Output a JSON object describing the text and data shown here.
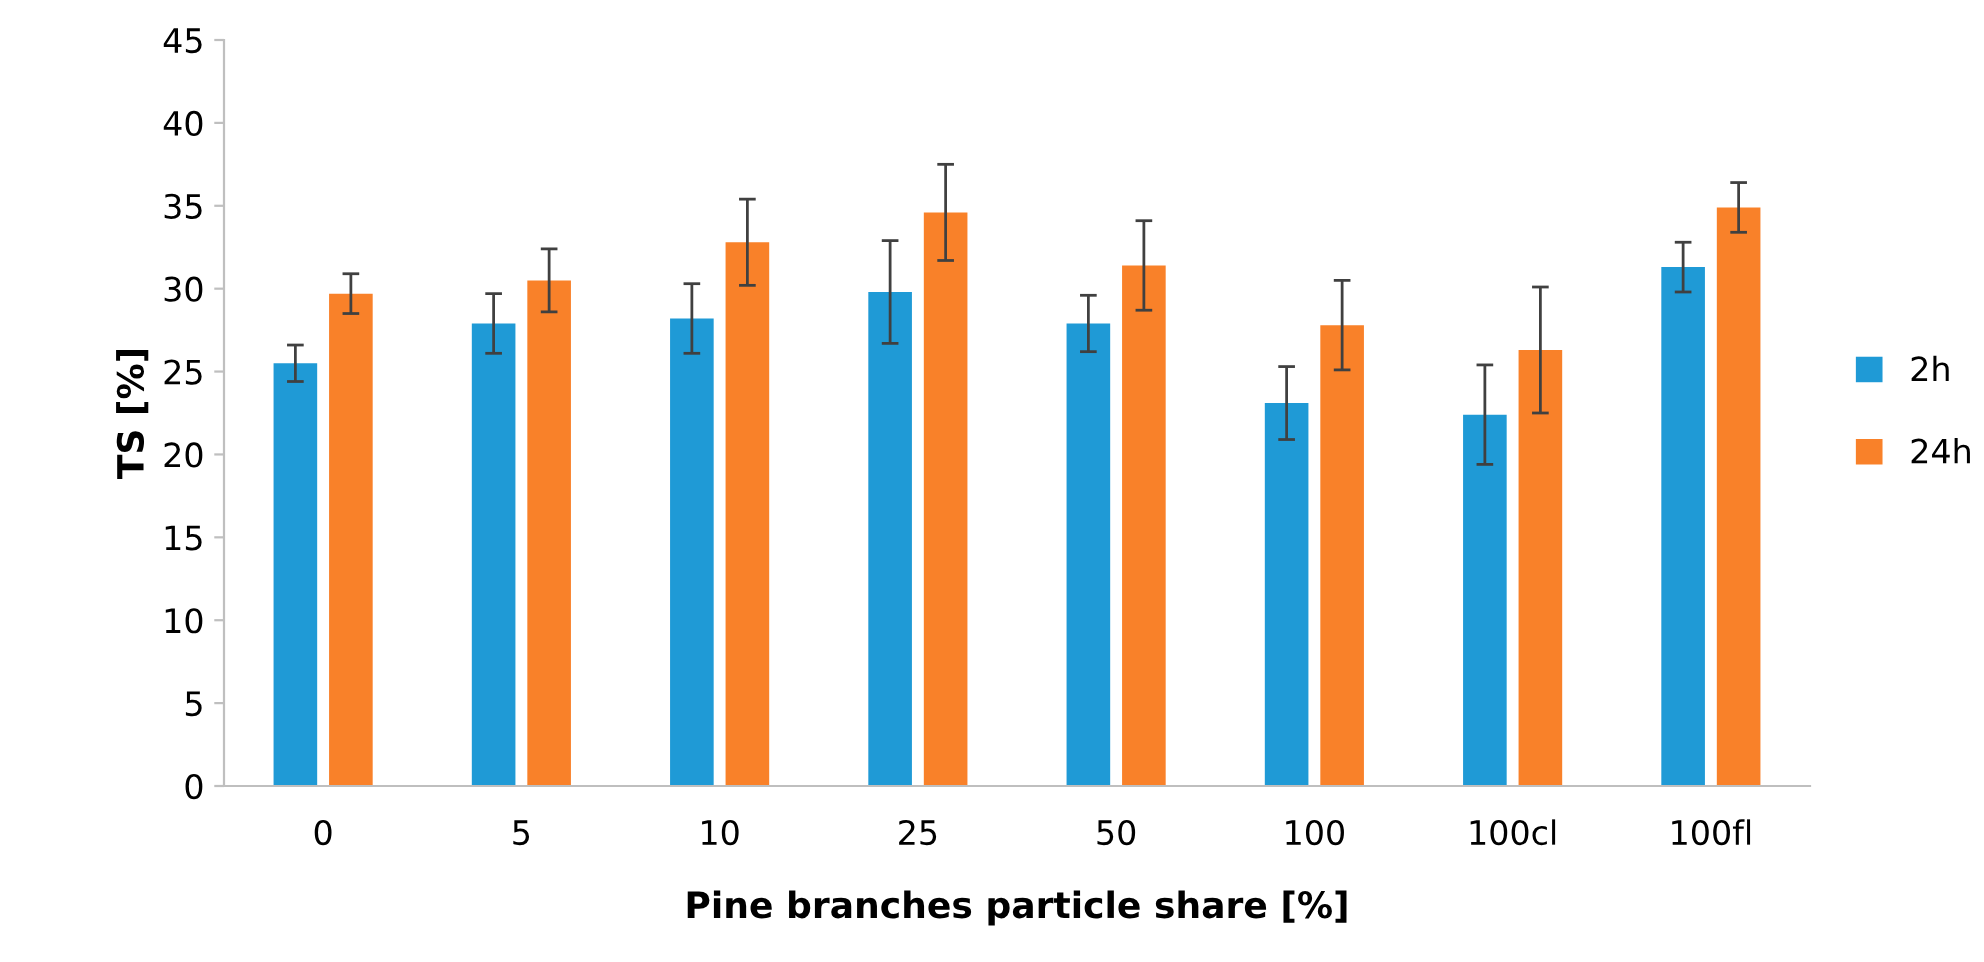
{
  "chart_data": {
    "type": "bar",
    "xlabel": "Pine branches particle share [%]",
    "ylabel": "TS [%]",
    "categories": [
      "0",
      "5",
      "10",
      "25",
      "50",
      "100",
      "100cl",
      "100fl"
    ],
    "series": [
      {
        "name": "2h",
        "color": "#1f9ad6",
        "values": [
          25.5,
          27.9,
          28.2,
          29.8,
          27.9,
          23.1,
          22.4,
          31.3
        ],
        "errors": [
          1.1,
          1.8,
          2.1,
          3.1,
          1.7,
          2.2,
          3.0,
          1.5
        ]
      },
      {
        "name": "24h",
        "color": "#f98129",
        "values": [
          29.7,
          30.5,
          32.8,
          34.6,
          31.4,
          27.8,
          26.3,
          34.9
        ],
        "errors": [
          1.2,
          1.9,
          2.6,
          2.9,
          2.7,
          2.7,
          3.8,
          1.5
        ]
      }
    ],
    "ylim": [
      0,
      45
    ],
    "yticks": [
      0,
      5,
      10,
      15,
      20,
      25,
      30,
      35,
      40,
      45
    ],
    "grid": false,
    "legend": "right"
  }
}
